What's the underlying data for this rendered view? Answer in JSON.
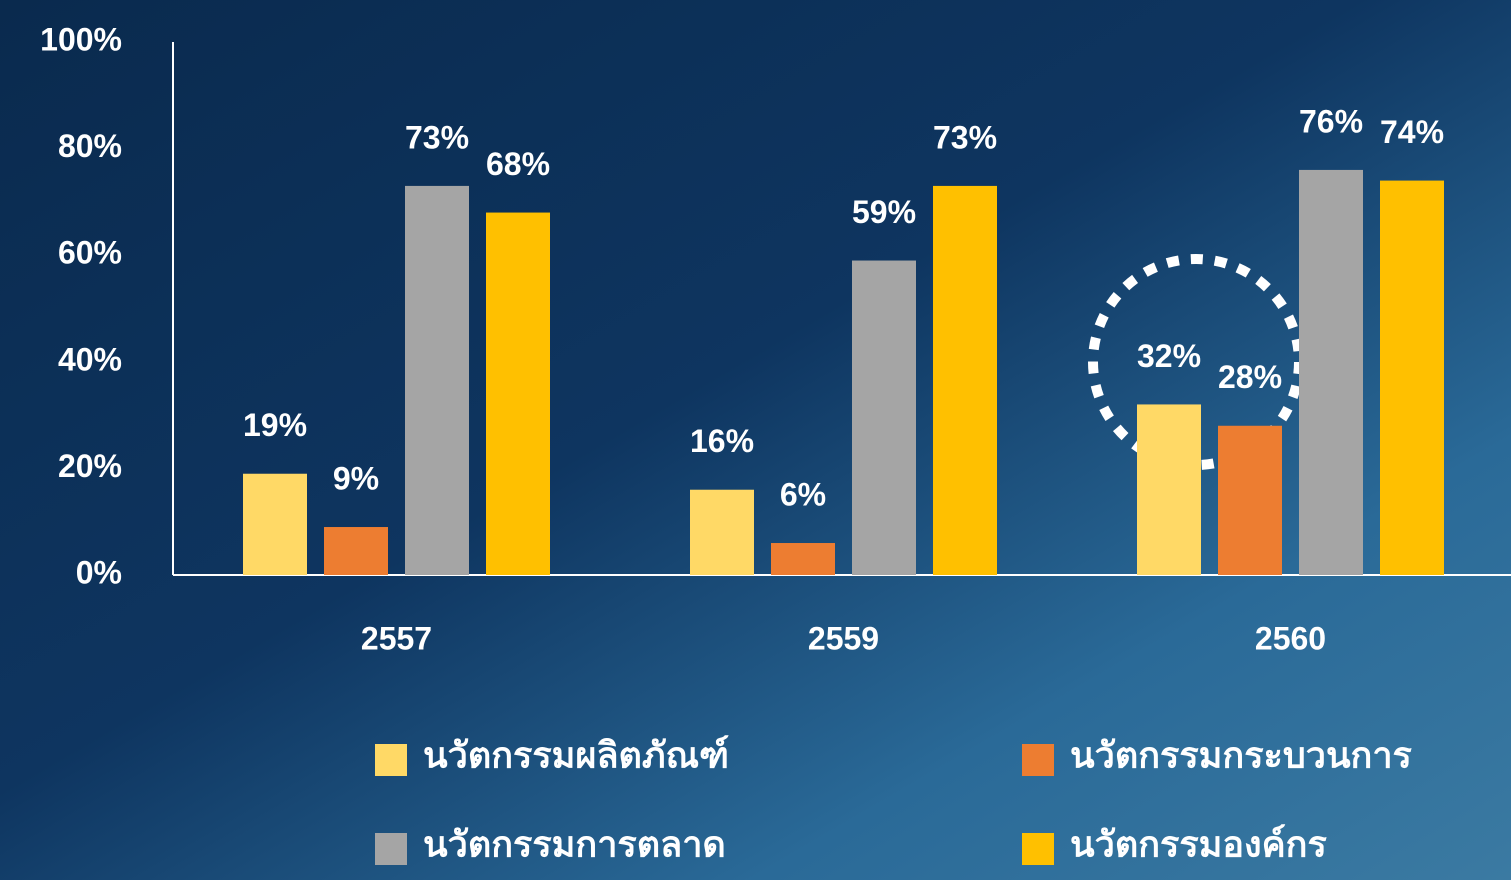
{
  "chart_data": {
    "type": "bar",
    "categories": [
      "2557",
      "2559",
      "2560"
    ],
    "series": [
      {
        "name": "นวัตกรรมผลิตภัณฑ์",
        "color": "#ffd966",
        "values": [
          19,
          16,
          32
        ],
        "value_labels": [
          "19%",
          "16%",
          "32%"
        ]
      },
      {
        "name": "นวัตกรรมกระบวนการ",
        "color": "#ed7d31",
        "values": [
          9,
          6,
          28
        ],
        "value_labels": [
          "9%",
          "6%",
          "28%"
        ]
      },
      {
        "name": "นวัตกรรมการตลาด",
        "color": "#a5a5a5",
        "values": [
          73,
          59,
          76
        ],
        "value_labels": [
          "73%",
          "59%",
          "76%"
        ]
      },
      {
        "name": "นวัตกรรมองค์กร",
        "color": "#ffc000",
        "values": [
          68,
          73,
          74
        ],
        "value_labels": [
          "68%",
          "73%",
          "74%"
        ]
      }
    ],
    "ylim": [
      0,
      100
    ],
    "yticks": [
      {
        "value": 0,
        "label": "0%"
      },
      {
        "value": 20,
        "label": "20%"
      },
      {
        "value": 40,
        "label": "40%"
      },
      {
        "value": 60,
        "label": "60%"
      },
      {
        "value": 80,
        "label": "80%"
      },
      {
        "value": 100,
        "label": "100%"
      }
    ],
    "grid": false
  }
}
